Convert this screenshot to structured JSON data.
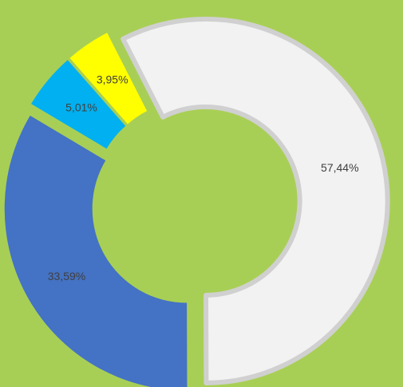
{
  "chart_data": {
    "type": "donut",
    "categories": [
      null,
      null,
      null,
      null
    ],
    "values": [
      57.44,
      33.59,
      5.01,
      3.95
    ],
    "value_labels": [
      "57,44%",
      "33,59%",
      "5,01%",
      "3,95%"
    ],
    "colors": [
      "#f2f2f2",
      "#4472c4",
      "#00b0f0",
      "#ffff00"
    ]
  }
}
